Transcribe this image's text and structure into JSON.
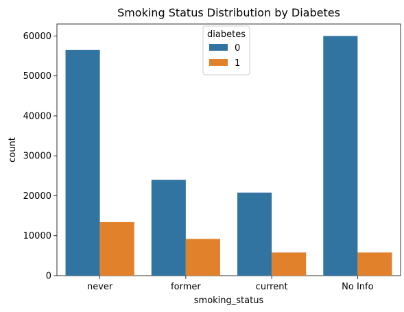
{
  "chart_data": {
    "type": "bar",
    "title": "Smoking Status Distribution by Diabetes",
    "xlabel": "smoking_status",
    "ylabel": "count",
    "categories": [
      "never",
      "former",
      "current",
      "No Info"
    ],
    "series": [
      {
        "name": "0",
        "values": [
          56500,
          24000,
          20800,
          60000
        ],
        "color": "#3274a1"
      },
      {
        "name": "1",
        "values": [
          13400,
          9200,
          5800,
          5800
        ],
        "color": "#e1812c"
      }
    ],
    "ylim": [
      0,
      63000
    ],
    "yticks": [
      0,
      10000,
      20000,
      30000,
      40000,
      50000,
      60000
    ],
    "ytick_labels": [
      "0",
      "10000",
      "20000",
      "30000",
      "40000",
      "50000",
      "60000"
    ],
    "legend": {
      "title": "diabetes",
      "placement": "upper-center"
    },
    "grid": false
  }
}
